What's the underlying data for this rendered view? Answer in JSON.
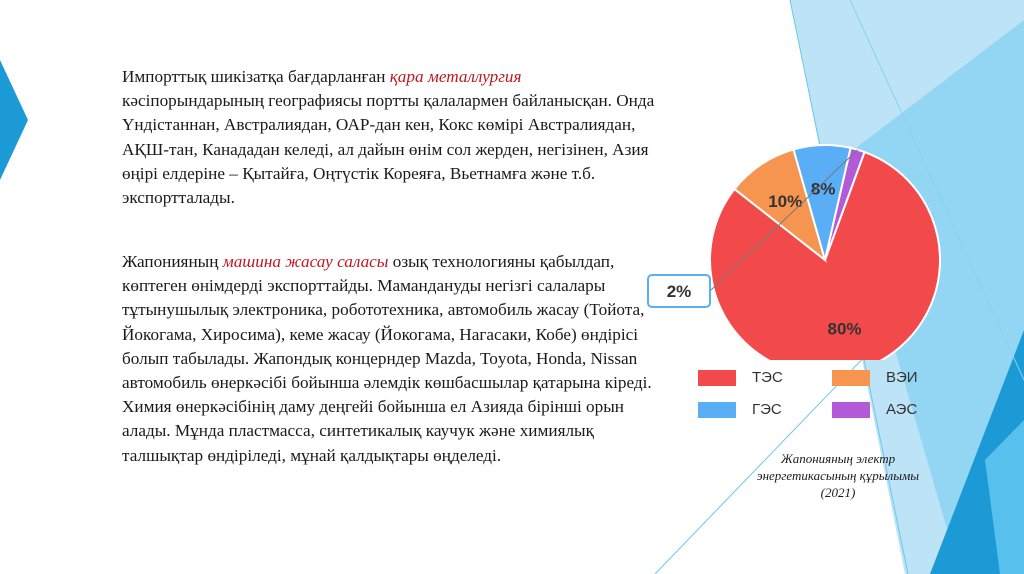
{
  "paragraph1": {
    "before": "Импорттық шикізатқа бағдарланған ",
    "highlight": "қара металлургия",
    "after": "\nкәсіпорындарының географиясы портты қалалармен байланысқан. Онда Үндістаннан, Австралиядан, ОАР-дан кен, Кокс көмірі Австралиядан, АҚШ-тан, Канададан келеді, ал дайын өнім сол жерден, негізінен, Азия өңірі елдеріне – Қытайға, Оңтүстік Кореяға, Вьетнамға және т.б. экспортталады."
  },
  "paragraph2": {
    "before": "Жапонияның ",
    "highlight": "машина жасау саласы",
    "after": " озық технологияны қабылдап, көптеген өнімдерді экспорттайды. Мамандануды негізгі салалары тұтынушылық электроника, робототехника, автомобиль жасау (Тойота, Йокогама, Хиросима), кеме жасау (Йокогама, Нагасаки, Кобе) өндірісі болып табылады. Жапондық концерндер Mazda, Toyota, Honda, Nissan автомобиль өнеркәсібі бойынша әлемдік көшбасшылар қатарына кіреді. Химия өнеркәсібінің даму деңгейі бойынша ел Азияда бірінші орын алады. Мұнда пластмасса, синтетикалық каучук және химиялық талшықтар өндіріледі, мұнай қалдықтары өңделеді."
  },
  "chart_data": {
    "type": "pie",
    "slices": [
      {
        "label": "ТЭС",
        "value": 80,
        "display": "80%",
        "color": "#f24a4a"
      },
      {
        "label": "ВЭИ",
        "value": 10,
        "display": "10%",
        "color": "#f6954f"
      },
      {
        "label": "ГЭС",
        "value": 8,
        "display": "8%",
        "color": "#5aaef5"
      },
      {
        "label": "АЭС",
        "value": 2,
        "display": "2%",
        "color": "#b25ad8"
      }
    ],
    "legend": [
      {
        "label": "ТЭС",
        "color": "#f24a4a"
      },
      {
        "label": "ВЭИ",
        "color": "#f6954f"
      },
      {
        "label": "ГЭС",
        "color": "#5aaef5"
      },
      {
        "label": "АЭС",
        "color": "#b25ad8"
      }
    ]
  },
  "caption": "Жапонияның электр энергетикасының құрылымы (2021)",
  "colors": {
    "accent_red": "#c0171f",
    "decor_light_blue": "#bde3f6",
    "decor_mid_blue": "#5fc4ee",
    "decor_dark_blue": "#1b9ad6"
  }
}
